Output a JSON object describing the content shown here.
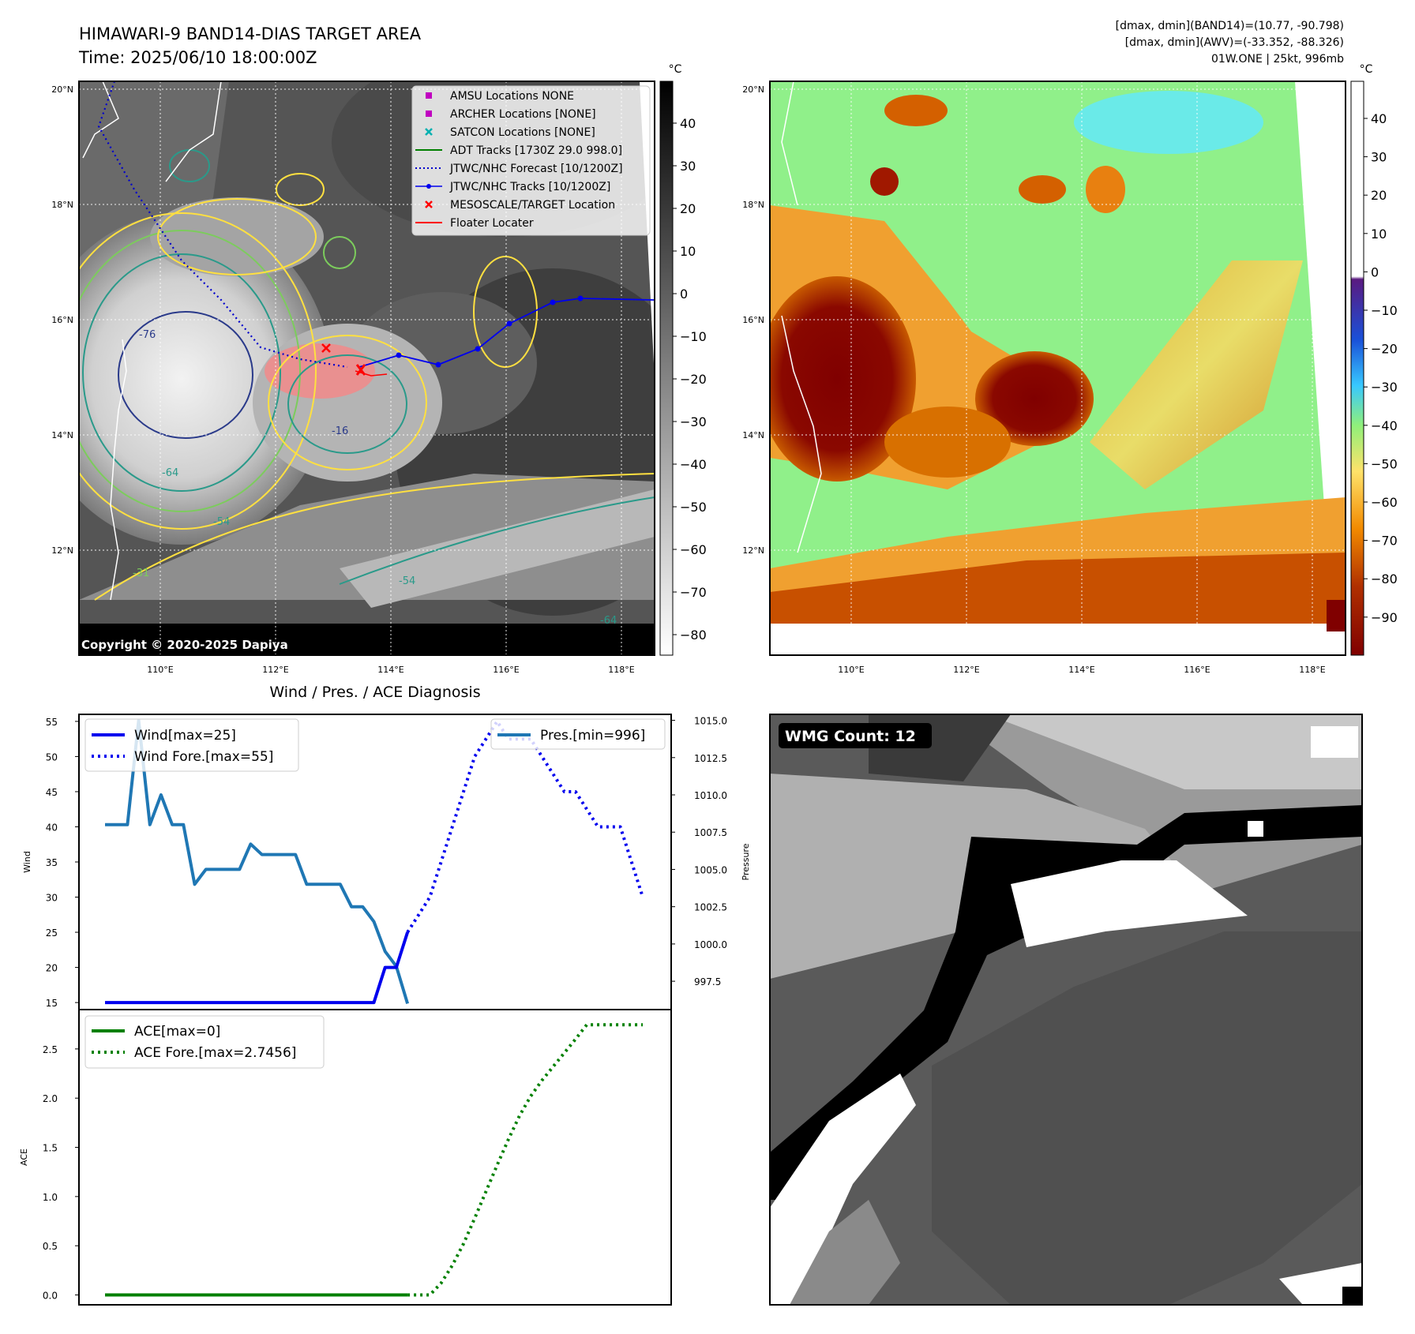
{
  "header": {
    "title_line1": "HIMAWARI-9 BAND14-DIAS TARGET AREA",
    "title_line2": "Time: 2025/06/10 18:00:00Z",
    "info_line1": "[dmax, dmin](BAND14)=(10.77, -90.798)",
    "info_line2": "[dmax, dmin](AWV)=(-33.352, -88.326)",
    "info_line3": "01W.ONE | 25kt, 996mb"
  },
  "map_common": {
    "lat_labels": [
      "20°N",
      "18°N",
      "16°N",
      "14°N",
      "12°N"
    ],
    "lon_labels": [
      "110°E",
      "112°E",
      "114°E",
      "116°E",
      "118°E"
    ]
  },
  "ir_panel": {
    "colorbar_unit": "°C",
    "colorbar_ticks": [
      "40",
      "30",
      "20",
      "10",
      "0",
      "−10",
      "−20",
      "−30",
      "−40",
      "−50",
      "−60",
      "−70",
      "−80"
    ],
    "copyright": "Copyright © 2020-2025 Dapiya",
    "contour_labels": [
      "-76",
      "-64",
      "-54",
      "-31",
      "-16",
      "-64",
      "-54",
      "-31",
      "-76"
    ],
    "legend": [
      {
        "label": "AMSU Locations NONE",
        "marker": "square",
        "color": "#c000c0"
      },
      {
        "label": "ARCHER Locations [NONE]",
        "marker": "square",
        "color": "#c000c0"
      },
      {
        "label": "SATCON Locations [NONE]",
        "marker": "x",
        "color": "#00b0b0"
      },
      {
        "label": "ADT Tracks [1730Z 29.0 998.0]",
        "marker": "line",
        "color": "#008000"
      },
      {
        "label": "JTWC/NHC Forecast [10/1200Z]",
        "marker": "dotted",
        "color": "#0000cc"
      },
      {
        "label": "JTWC/NHC Tracks [10/1200Z]",
        "marker": "line-dot",
        "color": "#0000ee"
      },
      {
        "label": "MESOSCALE/TARGET Location",
        "marker": "x",
        "color": "#ff0000"
      },
      {
        "label": "Floater Locater",
        "marker": "line",
        "color": "#ff0000"
      }
    ]
  },
  "awv_panel": {
    "colorbar_unit": "°C",
    "colorbar_ticks": [
      "40",
      "30",
      "20",
      "10",
      "0",
      "−10",
      "−20",
      "−30",
      "−40",
      "−50",
      "−60",
      "−70",
      "−80",
      "−90"
    ]
  },
  "wmg_panel": {
    "badge": "WMG Count: 12"
  },
  "chart_data": [
    {
      "type": "line",
      "title": "Wind / Pres. / ACE Diagnosis",
      "ylabel": "Wind",
      "ylabel_right": "Pressure",
      "ylim": [
        14,
        56
      ],
      "ylim_right": [
        995.6,
        1015.4
      ],
      "yticks": [
        "55",
        "50",
        "45",
        "40",
        "35",
        "30",
        "25",
        "20",
        "15"
      ],
      "yticks_right": [
        "1015.0",
        "1012.5",
        "1010.0",
        "1007.5",
        "1005.0",
        "1002.5",
        "1000.0",
        "997.5"
      ],
      "series": [
        {
          "name": "Wind[max=25]",
          "axis": "left",
          "style": "solid",
          "color": "#0000ee",
          "x": [
            0,
            1,
            2,
            3,
            4,
            5,
            6,
            7,
            8,
            9,
            10,
            11,
            12,
            13,
            14,
            15,
            16,
            17,
            18,
            19,
            20,
            21,
            22,
            23,
            24,
            25,
            26,
            27
          ],
          "values": [
            15,
            15,
            15,
            15,
            15,
            15,
            15,
            15,
            15,
            15,
            15,
            15,
            15,
            15,
            15,
            15,
            15,
            15,
            15,
            15,
            15,
            15,
            15,
            15,
            15,
            20,
            20,
            25
          ]
        },
        {
          "name": "Wind Fore.[max=55]",
          "axis": "left",
          "style": "dotted",
          "color": "#0000ee",
          "x": [
            27,
            28,
            29,
            30,
            31,
            32,
            33,
            34,
            35,
            36,
            37,
            38,
            39,
            40,
            41,
            42,
            43,
            44,
            45,
            46,
            47,
            48
          ],
          "values": [
            25,
            27.5,
            30,
            35,
            40,
            45,
            50,
            52.5,
            55,
            52.5,
            52.5,
            52.5,
            50,
            47.5,
            45,
            45,
            42.5,
            40,
            40,
            40,
            35,
            30
          ]
        },
        {
          "name": "Pres.[min=996]",
          "axis": "right",
          "style": "solid",
          "color": "#1f77b4",
          "x": [
            0,
            1,
            2,
            3,
            4,
            5,
            6,
            7,
            8,
            9,
            10,
            11,
            12,
            13,
            14,
            15,
            16,
            17,
            18,
            19,
            20,
            21,
            22,
            23,
            24,
            25,
            26,
            27
          ],
          "values": [
            1008,
            1008,
            1008,
            1015,
            1008,
            1010,
            1008,
            1008,
            1004,
            1005,
            1005,
            1005,
            1005,
            1006.7,
            1006,
            1006,
            1006,
            1006,
            1004,
            1004,
            1004,
            1004,
            1002.5,
            1002.5,
            1001.5,
            999.5,
            998.5,
            996
          ]
        }
      ]
    },
    {
      "type": "line",
      "ylabel": "ACE",
      "ylim": [
        -0.1,
        2.9
      ],
      "yticks": [
        "2.5",
        "2.0",
        "1.5",
        "1.0",
        "0.5",
        "0.0"
      ],
      "series": [
        {
          "name": "ACE[max=0]",
          "style": "solid",
          "color": "#008000",
          "x": [
            0,
            27
          ],
          "values": [
            0,
            0
          ]
        },
        {
          "name": "ACE Fore.[max=2.7456]",
          "style": "dotted",
          "color": "#008000",
          "x": [
            27,
            28,
            29,
            30,
            31,
            32,
            33,
            34,
            35,
            36,
            37,
            38,
            39,
            40,
            41,
            42,
            43,
            44,
            45,
            46,
            47,
            48
          ],
          "values": [
            0,
            0,
            0,
            0.12,
            0.3,
            0.52,
            0.78,
            1.05,
            1.32,
            1.58,
            1.82,
            2.02,
            2.18,
            2.32,
            2.46,
            2.6,
            2.7456,
            2.7456,
            2.7456,
            2.7456,
            2.7456,
            2.7456
          ]
        }
      ]
    }
  ]
}
